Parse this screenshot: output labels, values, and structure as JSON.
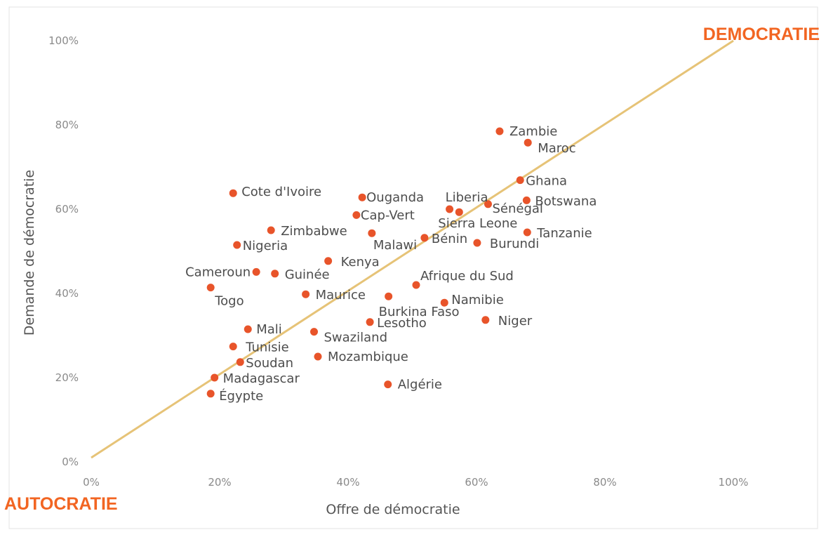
{
  "chart_data": {
    "type": "scatter",
    "xlabel": "Offre de démocratie",
    "ylabel": "Demande de démocratie",
    "xlim": [
      0,
      100
    ],
    "ylim": [
      0,
      100
    ],
    "x_ticks": [
      "0%",
      "20%",
      "40%",
      "60%",
      "80%",
      "100%"
    ],
    "y_ticks": [
      "0%",
      "20%",
      "40%",
      "60%",
      "80%",
      "100%"
    ],
    "grid": false,
    "diagonal": {
      "from": [
        0,
        1
      ],
      "to": [
        100,
        100
      ],
      "color": "#e6c377"
    },
    "point_color": "#e8542a",
    "annotations": {
      "top_right": "DEMOCRATIE",
      "bottom_left": "AUTOCRATIE",
      "color": "#f26522"
    },
    "points": [
      {
        "label": "Zambie",
        "x": 63.6,
        "y": 78.5
      },
      {
        "label": "Maroc",
        "x": 68.0,
        "y": 75.8
      },
      {
        "label": "Ghana",
        "x": 66.8,
        "y": 66.9
      },
      {
        "label": "Botswana",
        "x": 67.8,
        "y": 62.1
      },
      {
        "label": "Cote d'Ivoire",
        "x": 22.1,
        "y": 63.8
      },
      {
        "label": "Ouganda",
        "x": 42.2,
        "y": 62.8
      },
      {
        "label": "Liberia",
        "x": 55.8,
        "y": 60.0
      },
      {
        "label": "Sénégal",
        "x": 61.8,
        "y": 61.2
      },
      {
        "label": "Sierra Leone",
        "x": 57.3,
        "y": 59.3
      },
      {
        "label": "Cap-Vert",
        "x": 41.3,
        "y": 58.6
      },
      {
        "label": "Zimbabwe",
        "x": 28.0,
        "y": 55.0
      },
      {
        "label": "Malawi",
        "x": 43.7,
        "y": 54.3
      },
      {
        "label": "Bénin",
        "x": 51.9,
        "y": 53.2
      },
      {
        "label": "Tanzanie",
        "x": 67.9,
        "y": 54.5
      },
      {
        "label": "Burundi",
        "x": 60.1,
        "y": 52.0
      },
      {
        "label": "Nigeria",
        "x": 22.7,
        "y": 51.5
      },
      {
        "label": "Kenya",
        "x": 36.9,
        "y": 47.7
      },
      {
        "label": "Cameroun",
        "x": 25.7,
        "y": 45.1
      },
      {
        "label": "Guinée",
        "x": 28.6,
        "y": 44.7
      },
      {
        "label": "Afrique du Sud",
        "x": 50.6,
        "y": 42.0
      },
      {
        "label": "Togo",
        "x": 18.6,
        "y": 41.4
      },
      {
        "label": "Maurice",
        "x": 33.4,
        "y": 39.8
      },
      {
        "label": "Burkina Faso",
        "x": 46.3,
        "y": 39.3
      },
      {
        "label": "Namibie",
        "x": 55.0,
        "y": 37.8
      },
      {
        "label": "Niger",
        "x": 61.4,
        "y": 33.7
      },
      {
        "label": "Lesotho",
        "x": 43.4,
        "y": 33.2
      },
      {
        "label": "Mali",
        "x": 24.4,
        "y": 31.5
      },
      {
        "label": "Swaziland",
        "x": 34.7,
        "y": 30.9
      },
      {
        "label": "Tunisie",
        "x": 22.1,
        "y": 27.4
      },
      {
        "label": "Mozambique",
        "x": 35.3,
        "y": 25.0
      },
      {
        "label": "Soudan",
        "x": 23.2,
        "y": 23.7
      },
      {
        "label": "Madagascar",
        "x": 19.2,
        "y": 20.0
      },
      {
        "label": "Algérie",
        "x": 46.2,
        "y": 18.4
      },
      {
        "label": "Égypte",
        "x": 18.6,
        "y": 16.2
      }
    ]
  }
}
